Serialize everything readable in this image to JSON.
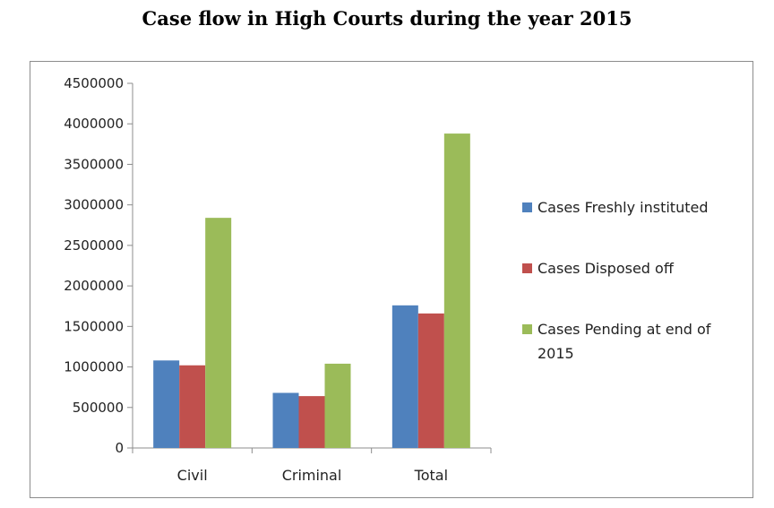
{
  "chart_data": {
    "type": "bar",
    "title": "Case flow in High Courts during the year 2015",
    "categories": [
      "Civil",
      "Criminal",
      "Total"
    ],
    "series": [
      {
        "name": "Cases Freshly instituted",
        "color": "#4f81bd",
        "values": [
          1080000,
          680000,
          1760000
        ]
      },
      {
        "name": "Cases Disposed off",
        "color": "#c0504d",
        "values": [
          1020000,
          640000,
          1660000
        ]
      },
      {
        "name": "Cases Pending at end of 2015",
        "color": "#9bbb59",
        "values": [
          2840000,
          1040000,
          3880000
        ]
      }
    ],
    "ylim": [
      0,
      4500000
    ],
    "yticks": [
      "0",
      "500000",
      "1000000",
      "1500000",
      "2000000",
      "2500000",
      "3000000",
      "3500000",
      "4000000",
      "4500000"
    ],
    "grid": false,
    "legend_position": "right"
  }
}
